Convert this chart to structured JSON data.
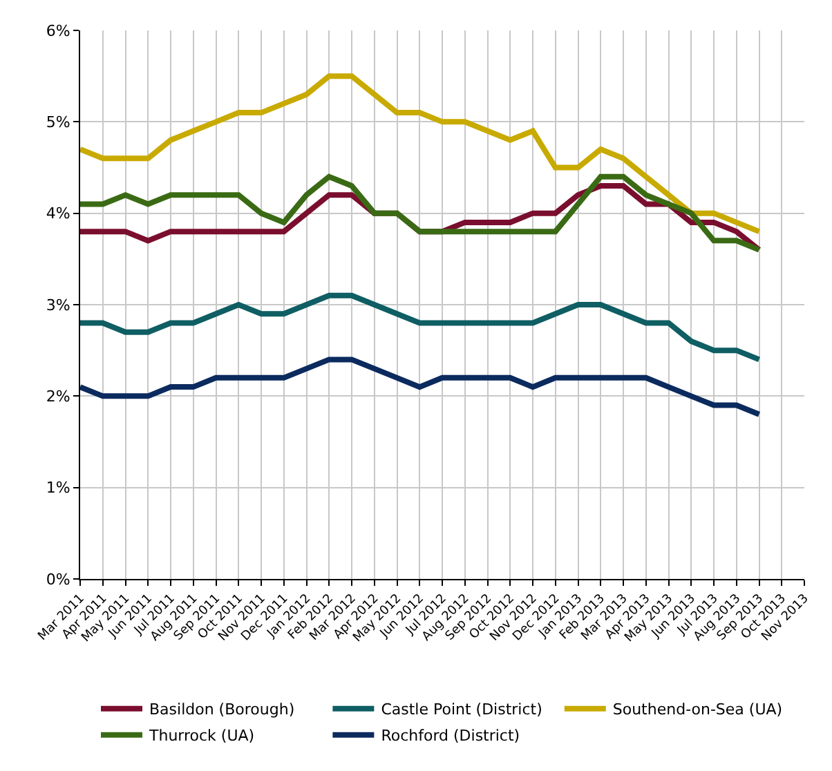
{
  "chart_data": {
    "type": "line",
    "categories": [
      "Mar 2011",
      "Apr 2011",
      "May 2011",
      "Jun 2011",
      "Jul 2011",
      "Aug 2011",
      "Sep 2011",
      "Oct 2011",
      "Nov 2011",
      "Dec 2011",
      "Jan 2012",
      "Feb 2012",
      "Mar 2012",
      "Apr 2012",
      "May 2012",
      "Jun 2012",
      "Jul 2012",
      "Aug 2012",
      "Sep 2012",
      "Oct 2012",
      "Nov 2012",
      "Dec 2012",
      "Jan 2013",
      "Feb 2013",
      "Mar 2013",
      "Apr 2013",
      "May 2013",
      "Jun 2013",
      "Jul 2013",
      "Aug 2013",
      "Sep 2013",
      "Oct 2013",
      "Nov 2013"
    ],
    "series": [
      {
        "name": "Basildon (Borough)",
        "color": "#7a0e2e",
        "values": [
          3.8,
          3.8,
          3.8,
          3.7,
          3.8,
          3.8,
          3.8,
          3.8,
          3.8,
          3.8,
          4.0,
          4.2,
          4.2,
          4.0,
          4.0,
          3.8,
          3.8,
          3.9,
          3.9,
          3.9,
          4.0,
          4.0,
          4.2,
          4.3,
          4.3,
          4.1,
          4.1,
          3.9,
          3.9,
          3.8,
          3.6,
          null,
          null
        ]
      },
      {
        "name": "Castle Point (District)",
        "color": "#0e5e63",
        "values": [
          2.8,
          2.8,
          2.7,
          2.7,
          2.8,
          2.8,
          2.9,
          3.0,
          2.9,
          2.9,
          3.0,
          3.1,
          3.1,
          3.0,
          2.9,
          2.8,
          2.8,
          2.8,
          2.8,
          2.8,
          2.8,
          2.9,
          3.0,
          3.0,
          2.9,
          2.8,
          2.8,
          2.6,
          2.5,
          2.5,
          2.4,
          null,
          null
        ]
      },
      {
        "name": "Southend-on-Sea (UA)",
        "color": "#c8aa00",
        "values": [
          4.7,
          4.6,
          4.6,
          4.6,
          4.8,
          4.9,
          5.0,
          5.1,
          5.1,
          5.2,
          5.3,
          5.5,
          5.5,
          5.3,
          5.1,
          5.1,
          5.0,
          5.0,
          4.9,
          4.8,
          4.9,
          4.5,
          4.5,
          4.7,
          4.6,
          4.4,
          4.2,
          4.0,
          4.0,
          3.9,
          3.8,
          null,
          null
        ]
      },
      {
        "name": "Thurrock (UA)",
        "color": "#3a6b14",
        "values": [
          4.1,
          4.1,
          4.2,
          4.1,
          4.2,
          4.2,
          4.2,
          4.2,
          4.0,
          3.9,
          4.2,
          4.4,
          4.3,
          4.0,
          4.0,
          3.8,
          3.8,
          3.8,
          3.8,
          3.8,
          3.8,
          3.8,
          4.1,
          4.4,
          4.4,
          4.2,
          4.1,
          4.0,
          3.7,
          3.7,
          3.6,
          null,
          null
        ]
      },
      {
        "name": "Rochford (District)",
        "color": "#0b2a5e",
        "values": [
          2.1,
          2.0,
          2.0,
          2.0,
          2.1,
          2.1,
          2.2,
          2.2,
          2.2,
          2.2,
          2.3,
          2.4,
          2.4,
          2.3,
          2.2,
          2.1,
          2.2,
          2.2,
          2.2,
          2.2,
          2.1,
          2.2,
          2.2,
          2.2,
          2.2,
          2.2,
          2.1,
          2.0,
          1.9,
          1.9,
          1.8,
          null,
          null
        ]
      }
    ],
    "ylim": [
      0,
      6
    ],
    "yticks": [
      {
        "value": 0,
        "label": "0%"
      },
      {
        "value": 1,
        "label": "1%"
      },
      {
        "value": 2,
        "label": "2%"
      },
      {
        "value": 3,
        "label": "3%"
      },
      {
        "value": 4,
        "label": "4%"
      },
      {
        "value": 5,
        "label": "5%"
      },
      {
        "value": 6,
        "label": "6%"
      }
    ],
    "grid": true,
    "legend": "bottom",
    "marker": "none",
    "line_style": "solid"
  }
}
